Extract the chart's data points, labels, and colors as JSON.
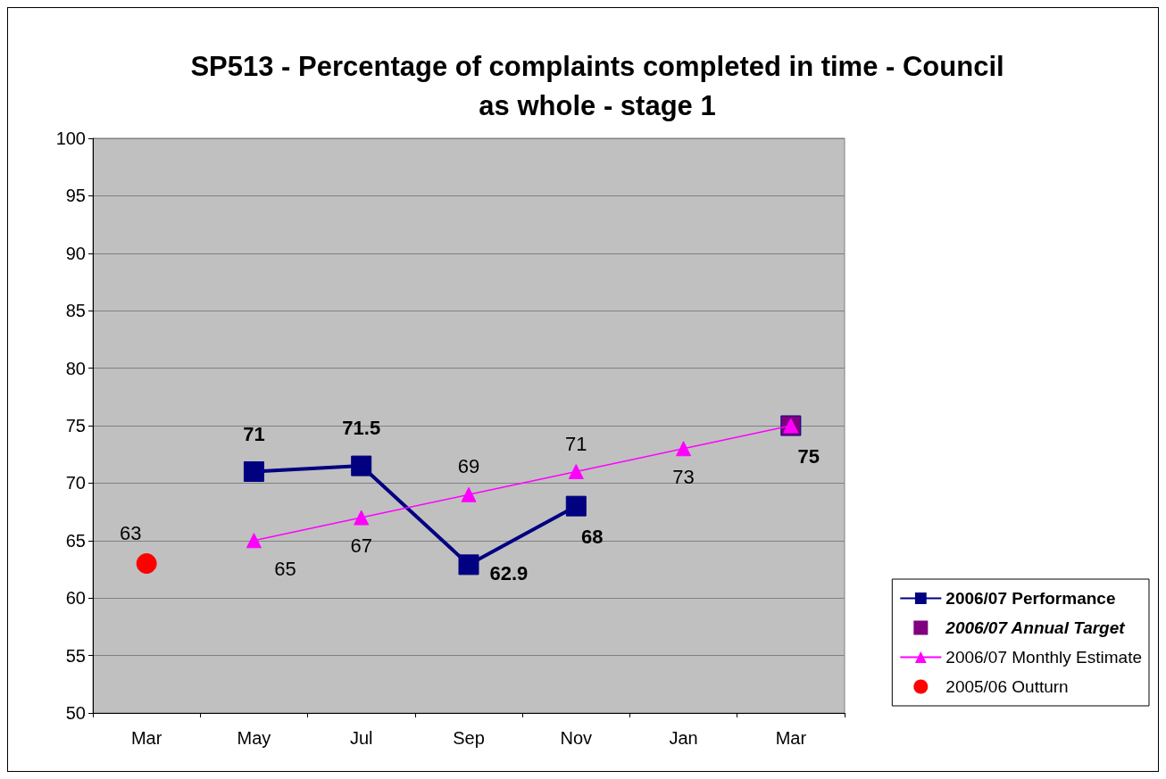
{
  "chart_data": {
    "type": "line",
    "title": "SP513 - Percentage of complaints completed in time - Council\nas whole - stage 1",
    "categories": [
      "Mar",
      "May",
      "Jul",
      "Sep",
      "Nov",
      "Jan",
      "Mar"
    ],
    "series": [
      {
        "name": "2006/07 Performance",
        "color": "#000080",
        "marker": "square",
        "line_style": "solid",
        "values": [
          null,
          71,
          71.5,
          62.9,
          68,
          null,
          null
        ],
        "value_labels": [
          null,
          "71",
          "71.5",
          "62.9",
          "68",
          null,
          null
        ]
      },
      {
        "name": "2006/07 Annual Target",
        "color": "#800080",
        "type": "scatter",
        "marker": "square",
        "values": [
          null,
          null,
          null,
          null,
          null,
          null,
          75
        ],
        "value_labels": [
          null,
          null,
          null,
          null,
          null,
          null,
          "75"
        ]
      },
      {
        "name": "2006/07 Monthly Estimate",
        "color": "#ff00ff",
        "marker": "triangle",
        "line_style": "solid",
        "values": [
          null,
          65,
          67,
          69,
          71,
          73,
          75
        ],
        "value_labels": [
          null,
          "65",
          "67",
          "69",
          "71",
          "73",
          null
        ]
      },
      {
        "name": "2005/06 Outturn",
        "color": "#ff0000",
        "type": "scatter",
        "marker": "circle",
        "values": [
          63,
          null,
          null,
          null,
          null,
          null,
          null
        ],
        "value_labels": [
          "63",
          null,
          null,
          null,
          null,
          null,
          null
        ]
      }
    ],
    "ylim": [
      50,
      100
    ],
    "yticks": [
      50,
      55,
      60,
      65,
      70,
      75,
      80,
      85,
      90,
      95,
      100
    ],
    "grid": "y",
    "legend": "right"
  }
}
